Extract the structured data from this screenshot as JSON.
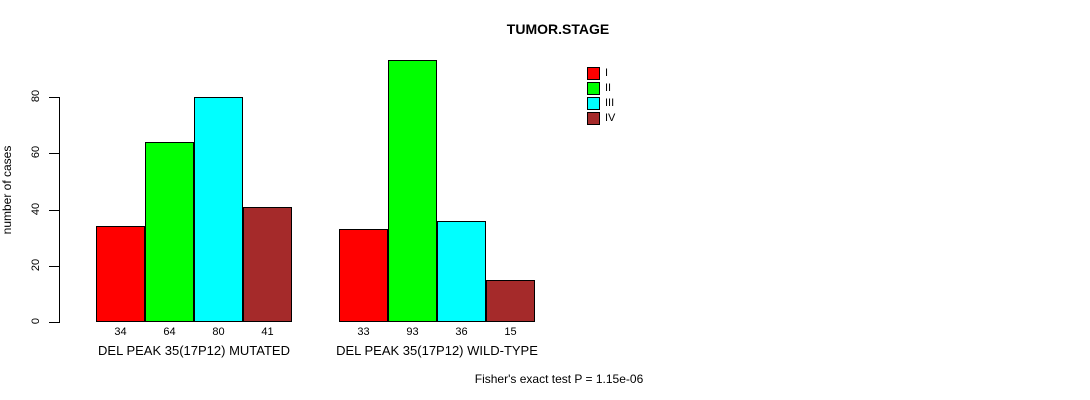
{
  "title": "TUMOR.STAGE",
  "footer": "Fisher's exact test P = 1.15e-06",
  "chart_data": {
    "type": "bar",
    "title": "TUMOR.STAGE",
    "xlabel": "",
    "ylabel": "number of cases",
    "ylim": [
      0,
      93
    ],
    "yticks": [
      0,
      20,
      40,
      60,
      80
    ],
    "grid": false,
    "legend_position": "top-right",
    "categories": [
      "DEL PEAK 35(17P12) MUTATED",
      "DEL PEAK 35(17P12) WILD-TYPE"
    ],
    "series": [
      {
        "name": "I",
        "color": "#FF0000",
        "values": [
          34,
          33
        ]
      },
      {
        "name": "II",
        "color": "#00FF00",
        "values": [
          64,
          93
        ]
      },
      {
        "name": "III",
        "color": "#00FFFF",
        "values": [
          80,
          36
        ]
      },
      {
        "name": "IV",
        "color": "#A52A2A",
        "values": [
          41,
          15
        ]
      }
    ],
    "bar_value_labels_shown": true,
    "annotation": "Fisher's exact test P = 1.15e-06"
  }
}
